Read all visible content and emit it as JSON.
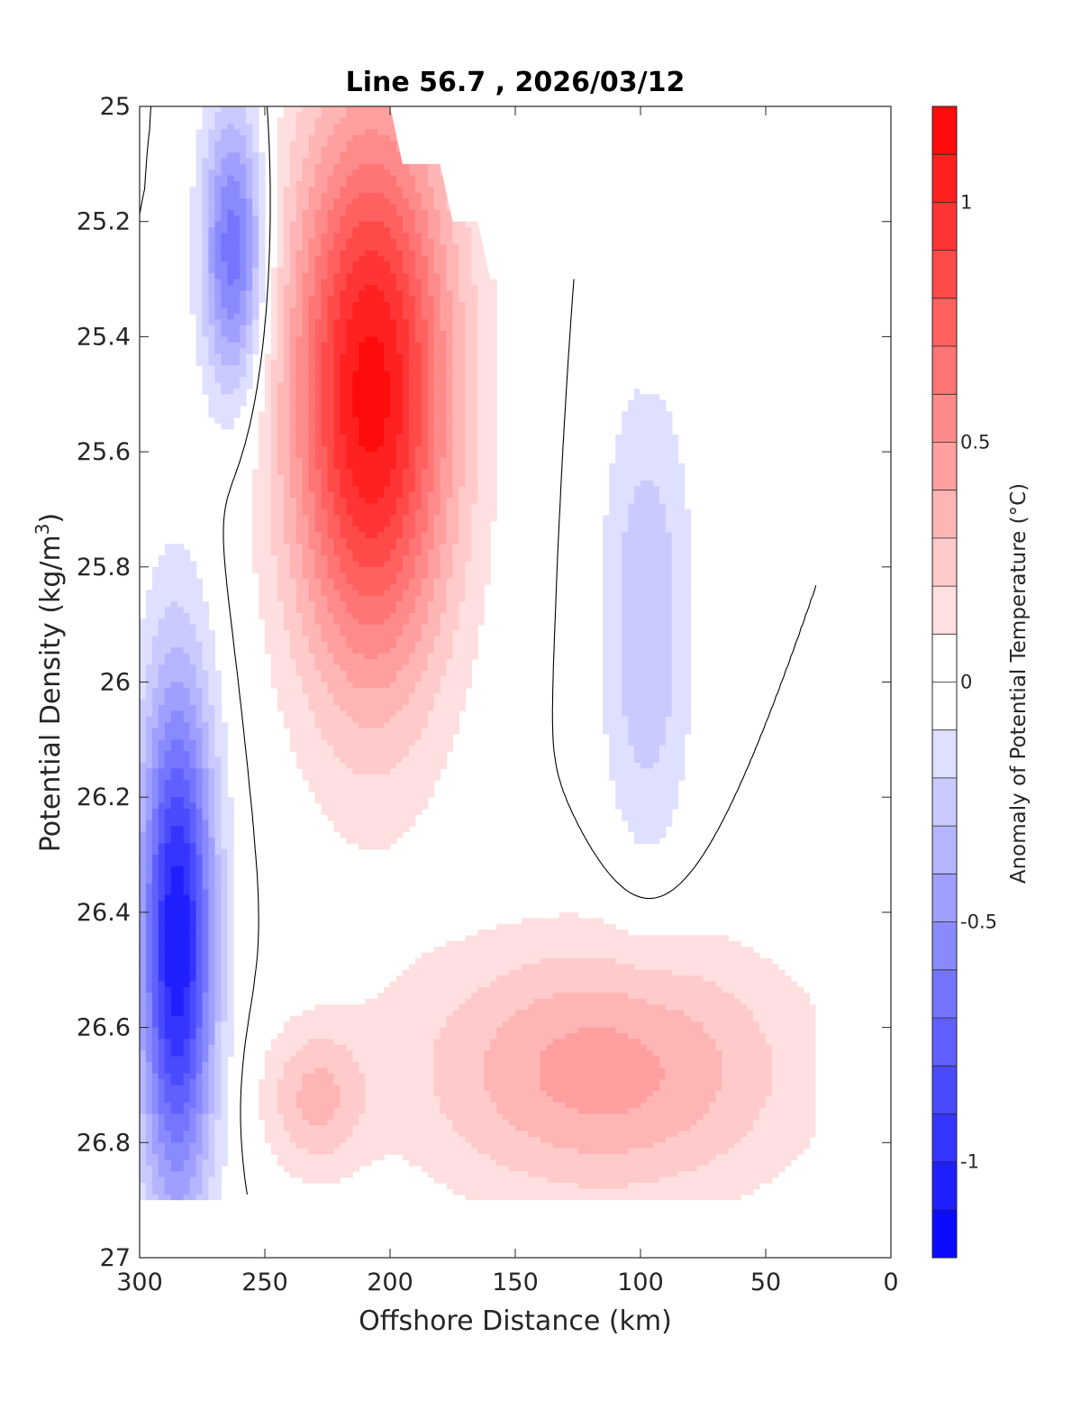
{
  "chart_data": {
    "type": "heatmap",
    "subtype": "filled-contour section",
    "title": "Line 56.7 , 2026/03/12",
    "xlabel": "Offshore Distance (km)",
    "ylabel": "Potential Density (kg/m",
    "ylabel_superscript": "3",
    "ylabel_suffix": ")",
    "xlim": [
      300,
      0
    ],
    "ylim": [
      25,
      27
    ],
    "y_reversed": true,
    "x_reversed": true,
    "xticks": [
      300,
      250,
      200,
      150,
      100,
      50,
      0
    ],
    "xtick_labels": [
      "300",
      "250",
      "200",
      "150",
      "100",
      "50",
      "0"
    ],
    "yticks": [
      25,
      25.2,
      25.4,
      25.6,
      25.8,
      26,
      26.2,
      26.4,
      26.6,
      26.8,
      27
    ],
    "ytick_labels": [
      "25",
      "25.2",
      "25.4",
      "25.6",
      "25.8",
      "26",
      "26.2",
      "26.4",
      "26.6",
      "26.8",
      "27"
    ],
    "grid": false,
    "colorbar": {
      "label": "Anomaly of Potential Temperature (°C)",
      "range": [
        -1.2,
        1.2
      ],
      "levels": [
        -1.2,
        -1.1,
        -1.0,
        -0.9,
        -0.8,
        -0.7,
        -0.6,
        -0.5,
        -0.4,
        -0.3,
        -0.2,
        -0.1,
        0,
        0.1,
        0.2,
        0.3,
        0.4,
        0.5,
        0.6,
        0.7,
        0.8,
        0.9,
        1.0,
        1.1,
        1.2
      ],
      "ticks": [
        1,
        0.5,
        0,
        -0.5,
        -1
      ],
      "tick_labels": [
        "1",
        "0.5",
        "0",
        "-0.5",
        "-1"
      ],
      "colors": {
        "negative": "#0000ff",
        "zero": "#ffffff",
        "positive": "#ff0000"
      }
    },
    "data_extent": {
      "y_max_density": 26.9,
      "top_boundary": [
        [
          300,
          25
        ],
        [
          200,
          25
        ],
        [
          195,
          25.1
        ],
        [
          180,
          25.1
        ],
        [
          175,
          25.2
        ],
        [
          165,
          25.2
        ],
        [
          160,
          25.3
        ],
        [
          120,
          25.3
        ],
        [
          115,
          25.4
        ],
        [
          105,
          25.4
        ],
        [
          100,
          25.5
        ],
        [
          80,
          25.5
        ],
        [
          75,
          25.6
        ],
        [
          30,
          25.6
        ]
      ],
      "right_edge_x": 30
    },
    "features": [
      {
        "sign": "negative",
        "peak": -1.1,
        "x_range": [
          300,
          270
        ],
        "y_range": [
          26.0,
          26.9
        ]
      },
      {
        "sign": "negative",
        "peak": -0.7,
        "x_range": [
          275,
          250
        ],
        "y_range": [
          25.0,
          25.5
        ]
      },
      {
        "sign": "positive",
        "peak": 1.15,
        "x_range": [
          240,
          175
        ],
        "y_range": [
          25.0,
          26.0
        ]
      },
      {
        "sign": "negative",
        "peak": -0.3,
        "x_range": [
          115,
          80
        ],
        "y_range": [
          25.5,
          26.3
        ]
      },
      {
        "sign": "positive",
        "peak": 0.45,
        "x_range": [
          190,
          40
        ],
        "y_range": [
          26.45,
          26.9
        ]
      },
      {
        "sign": "positive",
        "peak": 0.3,
        "x_range": [
          250,
          210
        ],
        "y_range": [
          26.6,
          26.85
        ]
      }
    ]
  }
}
